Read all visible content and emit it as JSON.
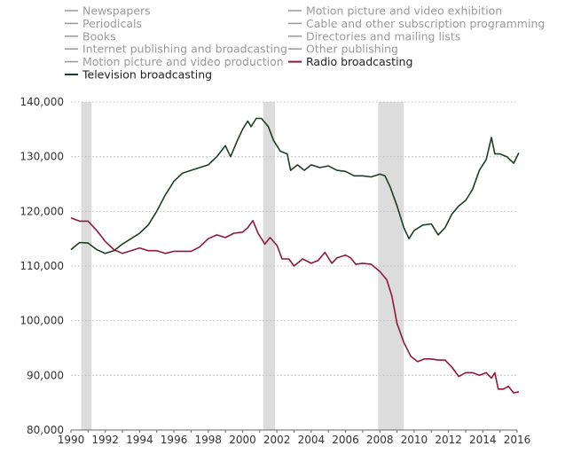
{
  "chart_data": {
    "type": "line",
    "title": "",
    "xlabel": "",
    "ylabel": "",
    "xlim": [
      1990,
      2016
    ],
    "ylim": [
      80000,
      140000
    ],
    "grid": "horizontal dotted",
    "legend_placement": "top",
    "x_ticks": [
      "1990",
      "1992",
      "1994",
      "1996",
      "1998",
      "2000",
      "2002",
      "2004",
      "2006",
      "2008",
      "2010",
      "2012",
      "2014",
      "2016"
    ],
    "y_ticks": [
      "80,000",
      "90,000",
      "100,000",
      "110,000",
      "120,000",
      "130,000",
      "140,000"
    ],
    "y_tick_values": [
      80000,
      90000,
      100000,
      110000,
      120000,
      130000,
      140000
    ],
    "x_tick_values": [
      1990,
      1992,
      1994,
      1996,
      1998,
      2000,
      2002,
      2004,
      2006,
      2008,
      2010,
      2012,
      2014,
      2016
    ],
    "recession_bands": [
      {
        "start": 1990.6,
        "end": 1991.2
      },
      {
        "start": 2001.2,
        "end": 2001.9
      },
      {
        "start": 2007.9,
        "end": 2009.4
      }
    ],
    "legend": [
      {
        "label": "Newspapers",
        "active": false,
        "color": "#999999"
      },
      {
        "label": "Motion picture and video exhibition",
        "active": false,
        "color": "#999999"
      },
      {
        "label": "Periodicals",
        "active": false,
        "color": "#999999"
      },
      {
        "label": "Cable and other subscription programming",
        "active": false,
        "color": "#999999"
      },
      {
        "label": "Books",
        "active": false,
        "color": "#999999"
      },
      {
        "label": "Directories and mailing lists",
        "active": false,
        "color": "#999999"
      },
      {
        "label": "Internet publishing and broadcasting",
        "active": false,
        "color": "#999999"
      },
      {
        "label": "Other publishing",
        "active": false,
        "color": "#999999"
      },
      {
        "label": "Motion picture and video production",
        "active": false,
        "color": "#999999"
      },
      {
        "label": "Radio broadcasting",
        "active": true,
        "color": "#8b1a3a"
      },
      {
        "label": "Television broadcasting",
        "active": true,
        "color": "#1f3d24"
      }
    ],
    "series": [
      {
        "name": "Television broadcasting",
        "color": "#1f3d24",
        "points": [
          [
            1990.0,
            113000
          ],
          [
            1990.5,
            114300
          ],
          [
            1991.0,
            114200
          ],
          [
            1991.5,
            113000
          ],
          [
            1992.0,
            112300
          ],
          [
            1992.5,
            112800
          ],
          [
            1993.0,
            114000
          ],
          [
            1993.5,
            115000
          ],
          [
            1994.0,
            116000
          ],
          [
            1994.5,
            117500
          ],
          [
            1995.0,
            120000
          ],
          [
            1995.5,
            123000
          ],
          [
            1996.0,
            125500
          ],
          [
            1996.5,
            127000
          ],
          [
            1997.0,
            127500
          ],
          [
            1997.5,
            128000
          ],
          [
            1998.0,
            128500
          ],
          [
            1998.5,
            130000
          ],
          [
            1999.0,
            132000
          ],
          [
            1999.3,
            130000
          ],
          [
            1999.7,
            133000
          ],
          [
            2000.0,
            135000
          ],
          [
            2000.3,
            136500
          ],
          [
            2000.5,
            135500
          ],
          [
            2000.8,
            137000
          ],
          [
            2001.1,
            137000
          ],
          [
            2001.5,
            135500
          ],
          [
            2001.8,
            133000
          ],
          [
            2002.2,
            131000
          ],
          [
            2002.6,
            130500
          ],
          [
            2002.8,
            127500
          ],
          [
            2003.2,
            128500
          ],
          [
            2003.6,
            127500
          ],
          [
            2004.0,
            128500
          ],
          [
            2004.5,
            128000
          ],
          [
            2005.0,
            128300
          ],
          [
            2005.5,
            127500
          ],
          [
            2006.0,
            127300
          ],
          [
            2006.5,
            126500
          ],
          [
            2007.0,
            126500
          ],
          [
            2007.5,
            126300
          ],
          [
            2008.0,
            126800
          ],
          [
            2008.3,
            126500
          ],
          [
            2008.6,
            124500
          ],
          [
            2009.0,
            121000
          ],
          [
            2009.4,
            117000
          ],
          [
            2009.7,
            115000
          ],
          [
            2010.0,
            116500
          ],
          [
            2010.5,
            117500
          ],
          [
            2011.0,
            117700
          ],
          [
            2011.4,
            115700
          ],
          [
            2011.8,
            117000
          ],
          [
            2012.2,
            119500
          ],
          [
            2012.6,
            121000
          ],
          [
            2013.0,
            122000
          ],
          [
            2013.4,
            124000
          ],
          [
            2013.8,
            127500
          ],
          [
            2014.2,
            129500
          ],
          [
            2014.5,
            133500
          ],
          [
            2014.7,
            130500
          ],
          [
            2015.0,
            130500
          ],
          [
            2015.4,
            130000
          ],
          [
            2015.8,
            128800
          ],
          [
            2016.1,
            130700
          ]
        ]
      },
      {
        "name": "Radio broadcasting",
        "color": "#8b1a3a",
        "points": [
          [
            1990.0,
            118800
          ],
          [
            1990.5,
            118200
          ],
          [
            1991.0,
            118200
          ],
          [
            1991.5,
            116500
          ],
          [
            1992.0,
            114500
          ],
          [
            1992.5,
            113000
          ],
          [
            1993.0,
            112300
          ],
          [
            1993.5,
            112800
          ],
          [
            1994.0,
            113300
          ],
          [
            1994.5,
            112800
          ],
          [
            1995.0,
            112800
          ],
          [
            1995.5,
            112300
          ],
          [
            1996.0,
            112700
          ],
          [
            1996.5,
            112700
          ],
          [
            1997.0,
            112700
          ],
          [
            1997.5,
            113500
          ],
          [
            1998.0,
            115000
          ],
          [
            1998.5,
            115700
          ],
          [
            1999.0,
            115200
          ],
          [
            1999.5,
            116000
          ],
          [
            2000.0,
            116200
          ],
          [
            2000.3,
            117000
          ],
          [
            2000.6,
            118300
          ],
          [
            2000.9,
            116000
          ],
          [
            2001.3,
            114000
          ],
          [
            2001.6,
            115200
          ],
          [
            2002.0,
            113800
          ],
          [
            2002.3,
            111300
          ],
          [
            2002.7,
            111300
          ],
          [
            2003.0,
            110000
          ],
          [
            2003.5,
            111300
          ],
          [
            2004.0,
            110500
          ],
          [
            2004.4,
            111000
          ],
          [
            2004.8,
            112500
          ],
          [
            2005.2,
            110500
          ],
          [
            2005.5,
            111500
          ],
          [
            2006.0,
            112000
          ],
          [
            2006.3,
            111500
          ],
          [
            2006.6,
            110300
          ],
          [
            2007.0,
            110500
          ],
          [
            2007.5,
            110300
          ],
          [
            2008.0,
            109000
          ],
          [
            2008.4,
            107500
          ],
          [
            2008.7,
            104500
          ],
          [
            2009.0,
            99500
          ],
          [
            2009.4,
            96000
          ],
          [
            2009.8,
            93500
          ],
          [
            2010.2,
            92500
          ],
          [
            2010.6,
            93000
          ],
          [
            2011.0,
            93000
          ],
          [
            2011.4,
            92800
          ],
          [
            2011.8,
            92800
          ],
          [
            2012.2,
            91500
          ],
          [
            2012.6,
            89800
          ],
          [
            2013.0,
            90500
          ],
          [
            2013.4,
            90500
          ],
          [
            2013.8,
            90000
          ],
          [
            2014.2,
            90500
          ],
          [
            2014.5,
            89500
          ],
          [
            2014.7,
            90500
          ],
          [
            2014.9,
            87500
          ],
          [
            2015.2,
            87500
          ],
          [
            2015.5,
            88000
          ],
          [
            2015.8,
            86800
          ],
          [
            2016.1,
            87000
          ]
        ]
      }
    ]
  }
}
